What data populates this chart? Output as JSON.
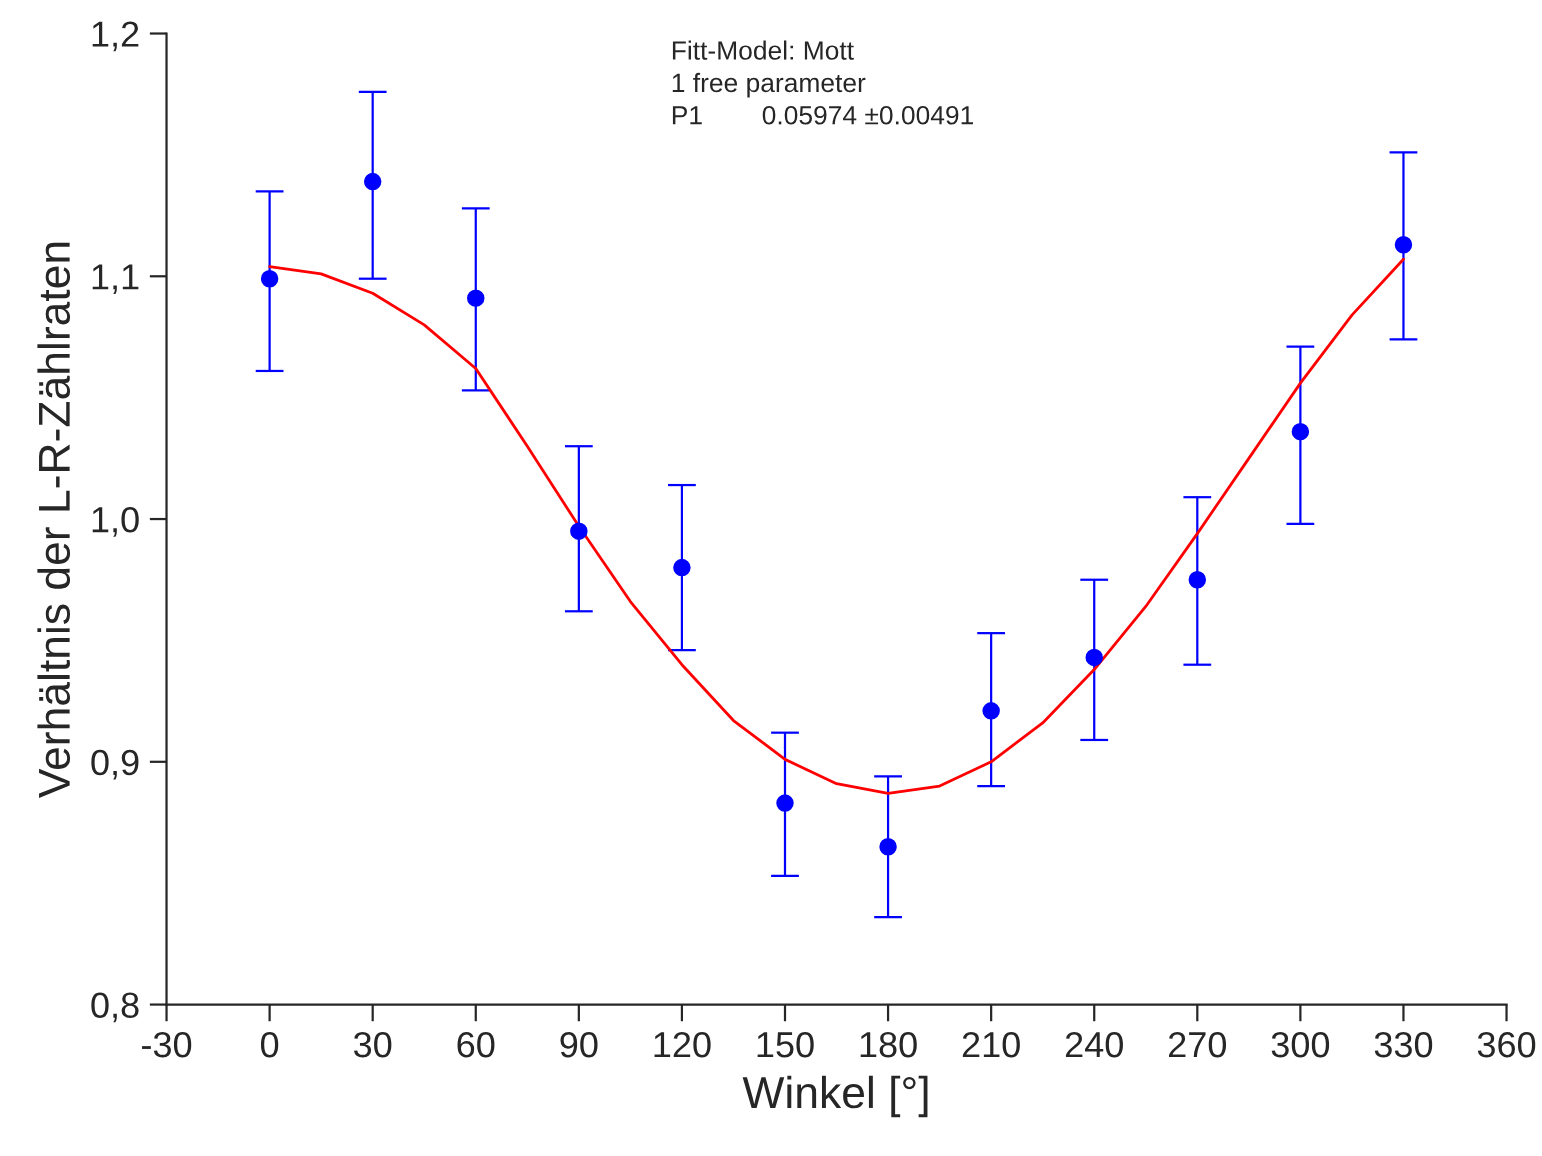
{
  "chart_data": {
    "type": "scatter",
    "xlabel": "Winkel [°]",
    "ylabel": "Verhältnis der L-R-Zählraten",
    "annotations": [
      "Fitt-Model: Mott",
      "1 free parameter",
      "P1        0.05974 ±0.00491"
    ],
    "xlim": [
      -30,
      360
    ],
    "xticks": [
      -30,
      0,
      30,
      60,
      90,
      120,
      150,
      180,
      210,
      240,
      270,
      300,
      330,
      360
    ],
    "ylim": [
      0.8,
      1.2
    ],
    "yticks": [
      {
        "value": 0.8,
        "label": "0,8"
      },
      {
        "value": 0.9,
        "label": "0,9"
      },
      {
        "value": 1.0,
        "label": "1,0"
      },
      {
        "value": 1.1,
        "label": "1,1"
      },
      {
        "value": 1.2,
        "label": "1,2"
      }
    ],
    "grid": false,
    "legend": false,
    "marker": "circle",
    "series": [
      {
        "color": "#0000ff",
        "x": [
          0,
          30,
          60,
          90,
          120,
          150,
          180,
          210,
          240,
          270,
          300,
          330
        ],
        "values": [
          1.099,
          1.139,
          1.091,
          0.995,
          0.98,
          0.883,
          0.865,
          0.921,
          0.943,
          0.975,
          1.036,
          1.113
        ],
        "errors": [
          [
            1.061,
            1.135
          ],
          [
            1.099,
            1.176
          ],
          [
            1.053,
            1.128
          ],
          [
            0.962,
            1.03
          ],
          [
            0.946,
            1.014
          ],
          [
            0.853,
            0.912
          ],
          [
            0.836,
            0.894
          ],
          [
            0.89,
            0.953
          ],
          [
            0.909,
            0.975
          ],
          [
            0.94,
            1.009
          ],
          [
            0.998,
            1.071
          ],
          [
            1.074,
            1.151
          ]
        ]
      },
      {
        "type": "line",
        "color": "#ff0000",
        "marker": "none",
        "x": [
          0,
          15,
          30,
          45,
          60,
          75,
          90,
          105,
          120,
          135,
          150,
          165,
          180,
          195,
          210,
          225,
          240,
          255,
          270,
          285,
          300,
          315,
          330
        ],
        "values": [
          1.104,
          1.101,
          1.093,
          1.08,
          1.062,
          1.03,
          0.997,
          0.966,
          0.94,
          0.917,
          0.901,
          0.891,
          0.887,
          0.89,
          0.9,
          0.916,
          0.938,
          0.964,
          0.994,
          1.025,
          1.056,
          1.084,
          1.107
        ]
      }
    ]
  }
}
